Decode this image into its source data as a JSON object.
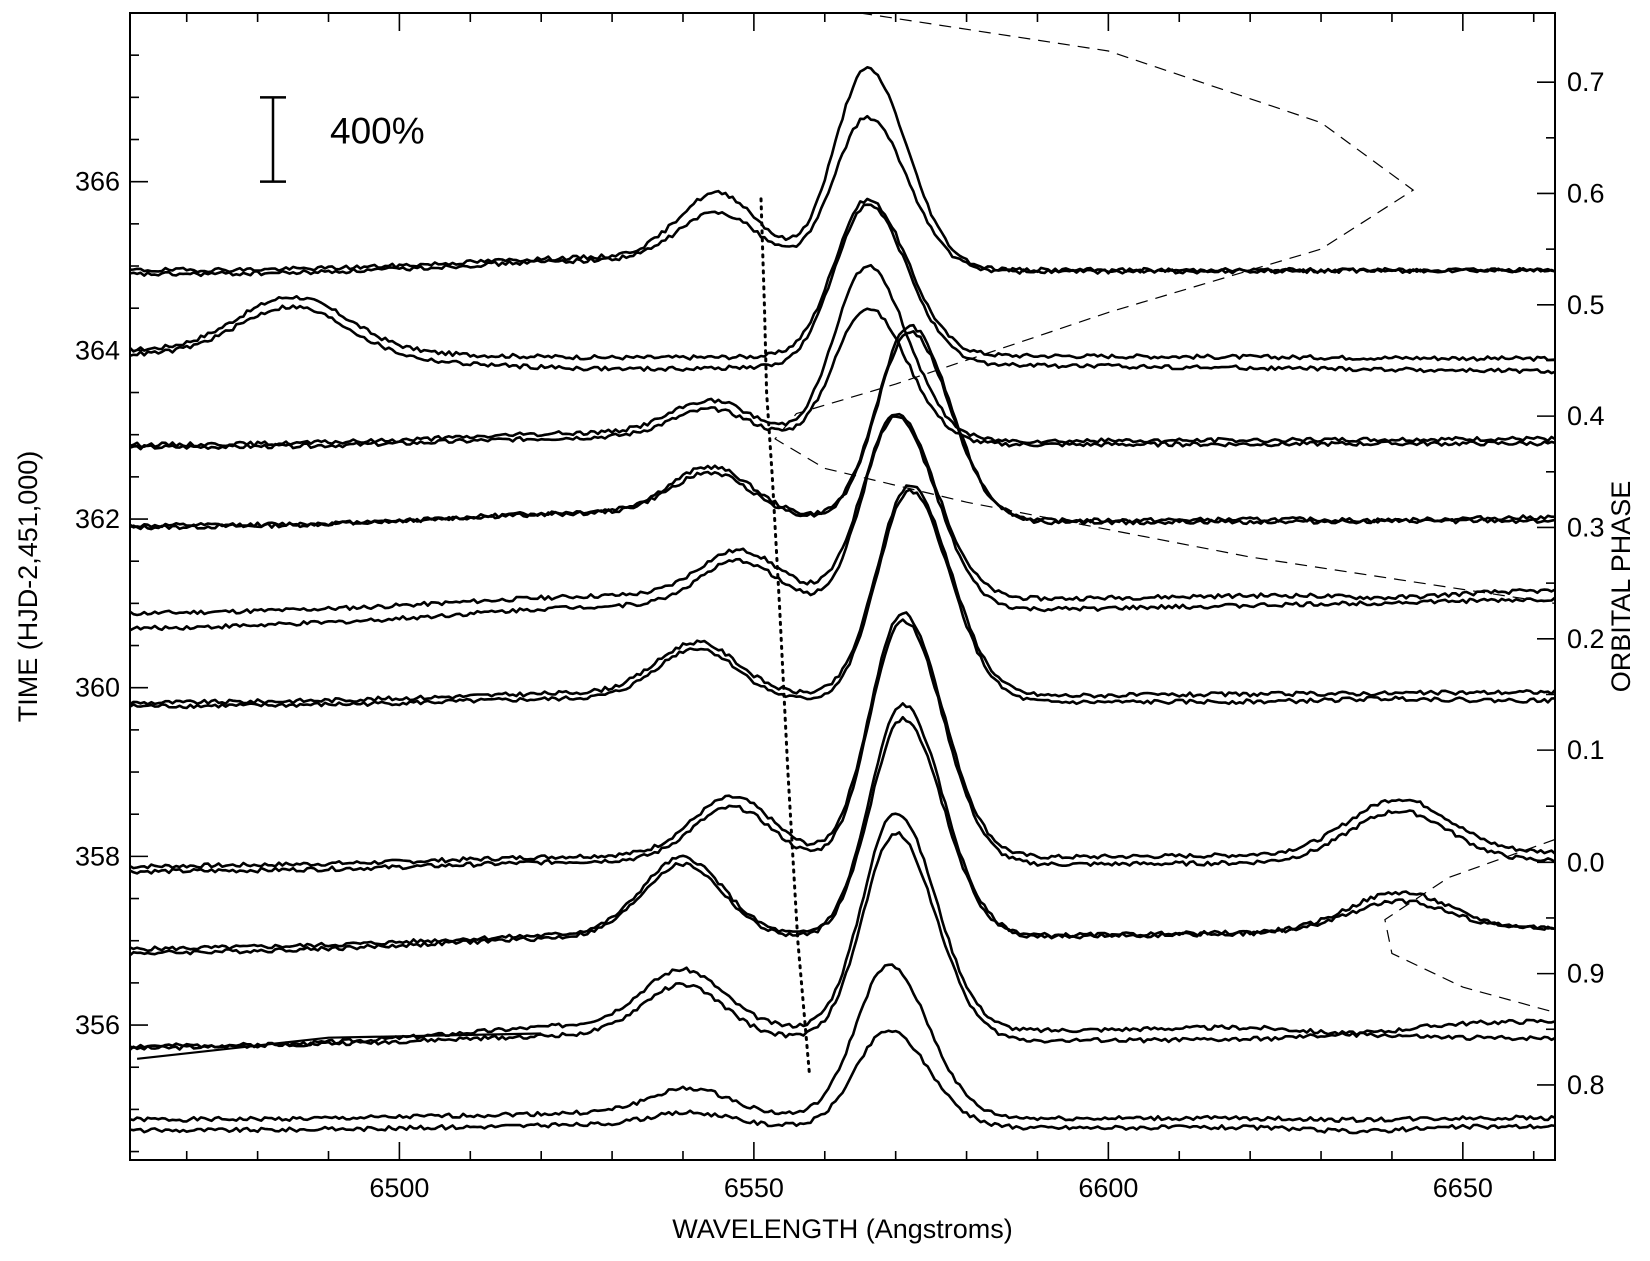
{
  "chart_data": {
    "type": "line",
    "xlabel": "WAVELENGTH (Angstroms)",
    "ylabel": "TIME (HJD-2,451,000)",
    "y2label": "ORBITAL PHASE",
    "xlim": [
      6462,
      6663
    ],
    "ylim": [
      354.4,
      368.0
    ],
    "x_ticks": [
      "6500",
      "6550",
      "6600",
      "6650"
    ],
    "x_tick_values": [
      6500,
      6550,
      6600,
      6650
    ],
    "y_ticks": [
      "356",
      "358",
      "360",
      "362",
      "364",
      "366"
    ],
    "y_tick_values": [
      356,
      358,
      360,
      362,
      364,
      366
    ],
    "y2_ticks": [
      "0.7",
      "0.6",
      "0.5",
      "0.4",
      "0.3",
      "0.2",
      "0.1",
      "0.0",
      "0.9",
      "0.8"
    ],
    "y2_tick_times": [
      367.18,
      365.86,
      364.54,
      363.22,
      361.9,
      360.58,
      359.26,
      357.93,
      356.61,
      355.29
    ],
    "scale_bar": {
      "label": "400%",
      "spectrum_units": 1.0
    },
    "line_center": 6562.8,
    "series": [
      {
        "t": 354.75,
        "baseline": 354.75,
        "mid": 354.8,
        "peak_wl": 6569,
        "peak": 355.95,
        "blue_wl": 6541,
        "blue": 354.95,
        "red_wl": 6635,
        "red": 354.75,
        "end": 354.8
      },
      {
        "t": 354.88,
        "baseline": 354.88,
        "mid": 354.95,
        "peak_wl": 6569,
        "peak": 356.75,
        "blue_wl": 6541,
        "blue": 355.25,
        "red_wl": 6635,
        "red": 354.88,
        "end": 354.9
      },
      {
        "t": 355.75,
        "baseline": 355.75,
        "mid": 355.85,
        "peak_wl": 6570,
        "peak": 358.3,
        "blue_wl": 6540,
        "blue": 356.45,
        "red_wl": 6635,
        "red": 355.9,
        "end": 355.85
      },
      {
        "t": 355.72,
        "baseline": 355.72,
        "mid": 355.9,
        "peak_wl": 6570,
        "peak": 358.5,
        "blue_wl": 6540,
        "blue": 356.55,
        "red_wl": 6635,
        "red": 355.95,
        "end": 356.05
      },
      {
        "t": 356.85,
        "baseline": 356.85,
        "mid": 356.95,
        "peak_wl": 6571,
        "peak": 359.55,
        "blue_wl": 6540,
        "blue": 357.8,
        "red_wl": 6641,
        "red": 357.5,
        "end": 357.15
      },
      {
        "t": 356.9,
        "baseline": 356.9,
        "mid": 357.0,
        "peak_wl": 6571,
        "peak": 359.75,
        "blue_wl": 6540,
        "blue": 357.9,
        "red_wl": 6641,
        "red": 357.6,
        "end": 357.15
      },
      {
        "t": 357.82,
        "baseline": 357.82,
        "mid": 357.9,
        "peak_wl": 6571,
        "peak": 360.8,
        "blue_wl": 6547,
        "blue": 358.55,
        "red_wl": 6641,
        "red": 358.55,
        "end": 357.95
      },
      {
        "t": 357.88,
        "baseline": 357.88,
        "mid": 357.95,
        "peak_wl": 6571,
        "peak": 360.85,
        "blue_wl": 6547,
        "blue": 358.65,
        "red_wl": 6641,
        "red": 358.7,
        "end": 358.05
      },
      {
        "t": 359.78,
        "baseline": 359.78,
        "mid": 359.85,
        "peak_wl": 6572,
        "peak": 362.35,
        "blue_wl": 6542,
        "blue": 360.45,
        "red_wl": 6640,
        "red": 359.88,
        "end": 359.85
      },
      {
        "t": 359.82,
        "baseline": 359.82,
        "mid": 359.9,
        "peak_wl": 6572,
        "peak": 362.4,
        "blue_wl": 6542,
        "blue": 360.5,
        "red_wl": 6640,
        "red": 359.95,
        "end": 359.95
      },
      {
        "t": 360.7,
        "baseline": 360.7,
        "mid": 360.85,
        "peak_wl": 6570,
        "peak": 363.15,
        "blue_wl": 6548,
        "blue": 361.4,
        "red_wl": 6640,
        "red": 361.05,
        "end": 361.05
      },
      {
        "t": 360.88,
        "baseline": 360.88,
        "mid": 361.0,
        "peak_wl": 6570,
        "peak": 363.2,
        "blue_wl": 6548,
        "blue": 361.55,
        "red_wl": 6640,
        "red": 361.1,
        "end": 361.15
      },
      {
        "t": 361.92,
        "baseline": 361.92,
        "mid": 362.05,
        "peak_wl": 6572,
        "peak": 364.3,
        "blue_wl": 6544,
        "blue": 362.55,
        "red_wl": 6640,
        "red": 361.98,
        "end": 361.98
      },
      {
        "t": 361.9,
        "baseline": 361.9,
        "mid": 362.05,
        "peak_wl": 6572,
        "peak": 364.35,
        "blue_wl": 6544,
        "blue": 362.6,
        "red_wl": 6640,
        "red": 362.0,
        "end": 362.02
      },
      {
        "t": 362.85,
        "baseline": 362.85,
        "mid": 362.95,
        "peak_wl": 6566,
        "peak": 364.55,
        "blue_wl": 6544,
        "blue": 363.3,
        "red_wl": 6640,
        "red": 362.9,
        "end": 362.9
      },
      {
        "t": 362.88,
        "baseline": 362.88,
        "mid": 363.0,
        "peak_wl": 6566,
        "peak": 365.05,
        "blue_wl": 6544,
        "blue": 363.4,
        "red_wl": 6640,
        "red": 362.95,
        "end": 362.95
      },
      {
        "t": 363.95,
        "baseline": 363.95,
        "mid": 363.85,
        "peak_wl": 6566,
        "peak": 365.75,
        "blue_wl": 6485,
        "blue": 364.45,
        "red_wl": 6640,
        "red": 363.75,
        "end": 363.75
      },
      {
        "t": 364.0,
        "baseline": 364.0,
        "mid": 363.95,
        "peak_wl": 6566,
        "peak": 365.8,
        "blue_wl": 6485,
        "blue": 364.6,
        "red_wl": 6640,
        "red": 363.9,
        "end": 363.9
      },
      {
        "t": 364.9,
        "baseline": 364.9,
        "mid": 365.05,
        "peak_wl": 6566,
        "peak": 366.85,
        "blue_wl": 6545,
        "blue": 365.65,
        "red_wl": 6640,
        "red": 364.95,
        "end": 364.95
      },
      {
        "t": 364.95,
        "baseline": 364.95,
        "mid": 365.1,
        "peak_wl": 6566,
        "peak": 367.45,
        "blue_wl": 6545,
        "blue": 365.9,
        "red_wl": 6640,
        "red": 364.95,
        "end": 364.95
      }
    ],
    "dotted_line": [
      [
        6557.8,
        355.45
      ],
      [
        6556.2,
        357.0
      ],
      [
        6554.8,
        359.0
      ],
      [
        6553.6,
        361.0
      ],
      [
        6552.6,
        362.5
      ],
      [
        6551.8,
        363.5
      ],
      [
        6551.5,
        364.5
      ],
      [
        6551.0,
        365.8
      ]
    ],
    "dashed_curve": [
      [
        6565,
        368.0
      ],
      [
        6600,
        367.55
      ],
      [
        6630,
        366.7
      ],
      [
        6643,
        365.9
      ],
      [
        6630,
        365.2
      ],
      [
        6600,
        364.45
      ],
      [
        6570,
        363.6
      ],
      [
        6556,
        363.25
      ],
      [
        6553,
        362.95
      ],
      [
        6560,
        362.6
      ],
      [
        6580,
        362.2
      ],
      [
        6620,
        361.55
      ],
      [
        6663,
        361.0
      ]
    ],
    "dashed_curve_2": [
      [
        6663,
        358.2
      ],
      [
        6648,
        357.75
      ],
      [
        6639,
        357.25
      ],
      [
        6640,
        356.85
      ],
      [
        6650,
        356.45
      ],
      [
        6663,
        356.15
      ]
    ],
    "short_line": [
      [
        6463,
        355.6
      ],
      [
        6490,
        355.85
      ],
      [
        6520,
        355.9
      ]
    ]
  }
}
